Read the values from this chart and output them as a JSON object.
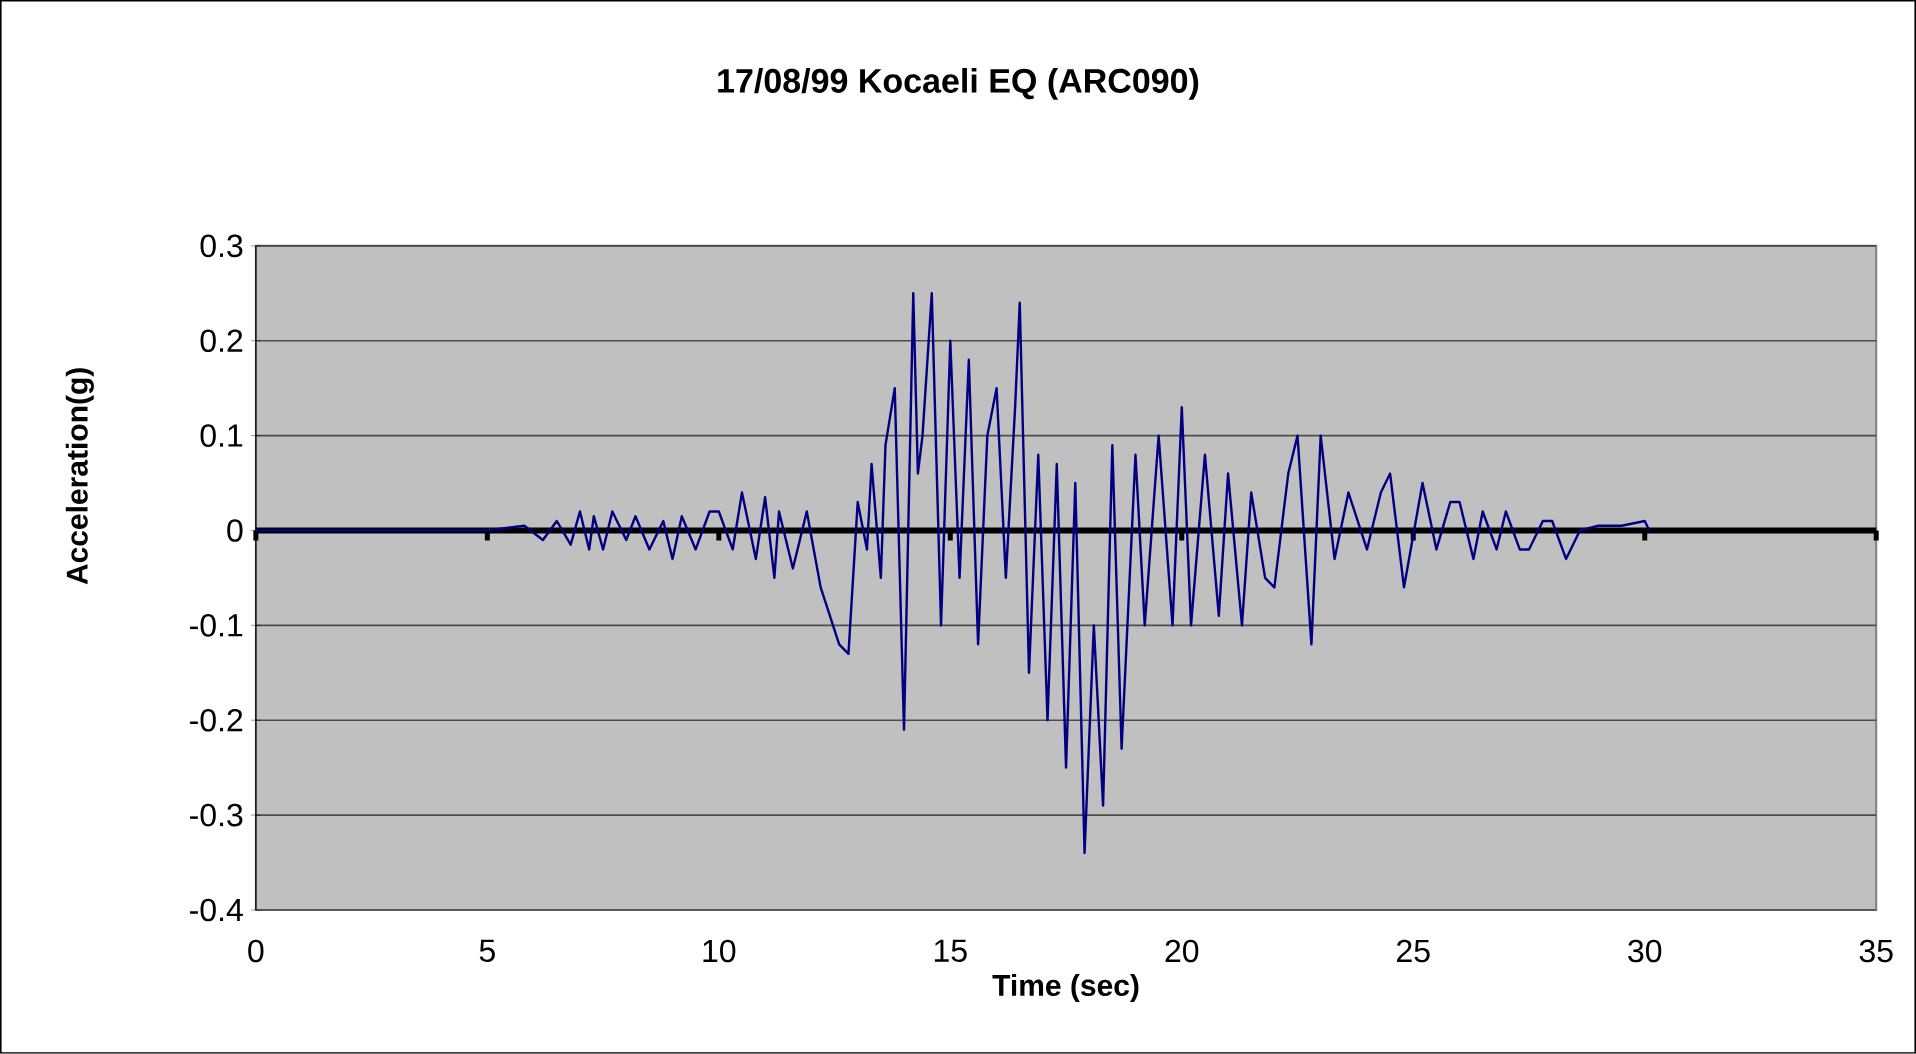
{
  "chart_data": {
    "type": "line",
    "title": "17/08/99 Kocaeli EQ (ARC090)",
    "xlabel": "Time (sec)",
    "ylabel": "Acceleration(g)",
    "x": [
      0,
      3,
      5,
      5.8,
      6.2,
      6.5,
      6.8,
      7,
      7.2,
      7.3,
      7.5,
      7.7,
      8,
      8.2,
      8.5,
      8.8,
      9,
      9.2,
      9.5,
      9.8,
      10,
      10.3,
      10.5,
      10.8,
      11,
      11.2,
      11.3,
      11.6,
      11.9,
      12.2,
      12.4,
      12.6,
      12.8,
      13,
      13.2,
      13.3,
      13.5,
      13.6,
      13.8,
      14,
      14.2,
      14.3,
      14.4,
      14.6,
      14.8,
      15,
      15.2,
      15.4,
      15.6,
      15.8,
      16,
      16.2,
      16.4,
      16.5,
      16.7,
      16.9,
      17.1,
      17.3,
      17.5,
      17.7,
      17.9,
      18.1,
      18.3,
      18.5,
      18.7,
      19,
      19.2,
      19.5,
      19.8,
      20,
      20.2,
      20.5,
      20.8,
      21,
      21.3,
      21.5,
      21.8,
      22,
      22.3,
      22.5,
      22.8,
      23,
      23.3,
      23.6,
      24,
      24.3,
      24.5,
      24.8,
      25.2,
      25.5,
      25.8,
      26,
      26.3,
      26.5,
      26.8,
      27,
      27.3,
      27.5,
      27.8,
      28,
      28.3,
      28.6,
      29,
      29.5,
      30,
      30.1
    ],
    "series": [
      {
        "color": "#000080",
        "values": [
          0,
          0,
          0,
          0.005,
          -0.01,
          0.01,
          -0.015,
          0.02,
          -0.02,
          0.015,
          -0.02,
          0.02,
          -0.01,
          0.015,
          -0.02,
          0.01,
          -0.03,
          0.015,
          -0.02,
          0.02,
          0.02,
          -0.02,
          0.04,
          -0.03,
          0.035,
          -0.05,
          0.02,
          -0.04,
          0.02,
          -0.06,
          -0.09,
          -0.12,
          -0.13,
          0.03,
          -0.02,
          0.07,
          -0.05,
          0.09,
          0.15,
          -0.21,
          0.25,
          0.06,
          0.1,
          0.25,
          -0.1,
          0.2,
          -0.05,
          0.18,
          -0.12,
          0.1,
          0.15,
          -0.05,
          0.13,
          0.24,
          -0.15,
          0.08,
          -0.2,
          0.07,
          -0.25,
          0.05,
          -0.34,
          -0.1,
          -0.29,
          0.09,
          -0.23,
          0.08,
          -0.1,
          0.1,
          -0.1,
          0.13,
          -0.1,
          0.08,
          -0.09,
          0.06,
          -0.1,
          0.04,
          -0.05,
          -0.06,
          0.06,
          0.1,
          -0.12,
          0.1,
          -0.03,
          0.04,
          -0.02,
          0.04,
          0.06,
          -0.06,
          0.05,
          -0.02,
          0.03,
          0.03,
          -0.03,
          0.02,
          -0.02,
          0.02,
          -0.02,
          -0.02,
          0.01,
          0.01,
          -0.03,
          0,
          0.005,
          0.005,
          0.01,
          0
        ]
      }
    ],
    "xlim": [
      0,
      35
    ],
    "ylim": [
      -0.4,
      0.3
    ],
    "xticks": [
      0,
      5,
      10,
      15,
      20,
      25,
      30,
      35
    ],
    "yticks": [
      -0.4,
      -0.3,
      -0.2,
      -0.1,
      0,
      0.1,
      0.2,
      0.3
    ],
    "grid": "y"
  }
}
